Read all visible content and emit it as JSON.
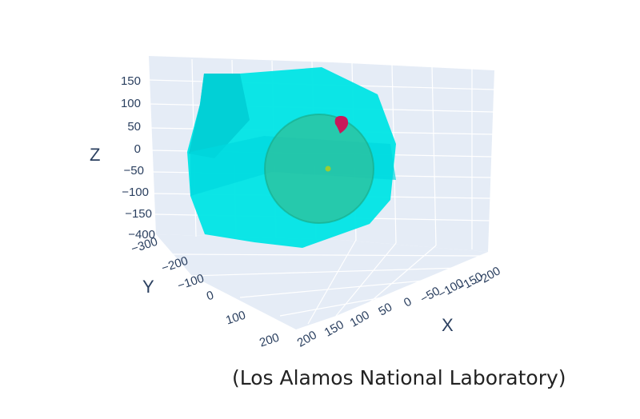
{
  "credit": "(Los Alamos National Laboratory)",
  "chart_data": {
    "type": "scatter3d",
    "title": "",
    "xlabel": "X",
    "ylabel": "Y",
    "zlabel": "Z",
    "x_ticks": [
      "200",
      "150",
      "100",
      "50",
      "0",
      "−50",
      "−100",
      "−150",
      "−200"
    ],
    "y_ticks": [
      "−300",
      "−200",
      "−100",
      "0",
      "100",
      "200"
    ],
    "z_ticks": [
      "150",
      "100",
      "50",
      "0",
      "−50",
      "−100",
      "−150",
      "−400"
    ],
    "series": [
      {
        "kind": "convex-hull surface",
        "color": "#00e5e5"
      },
      {
        "kind": "sphere surface",
        "color": "#2db88a"
      },
      {
        "kind": "point",
        "color": "#c8185a",
        "x": 0,
        "y": 0,
        "z": 100
      },
      {
        "kind": "point",
        "color": "#9acd32",
        "x": 0,
        "y": 0,
        "z": 0
      }
    ],
    "background_color": "#e5ecf6",
    "grid": true
  }
}
